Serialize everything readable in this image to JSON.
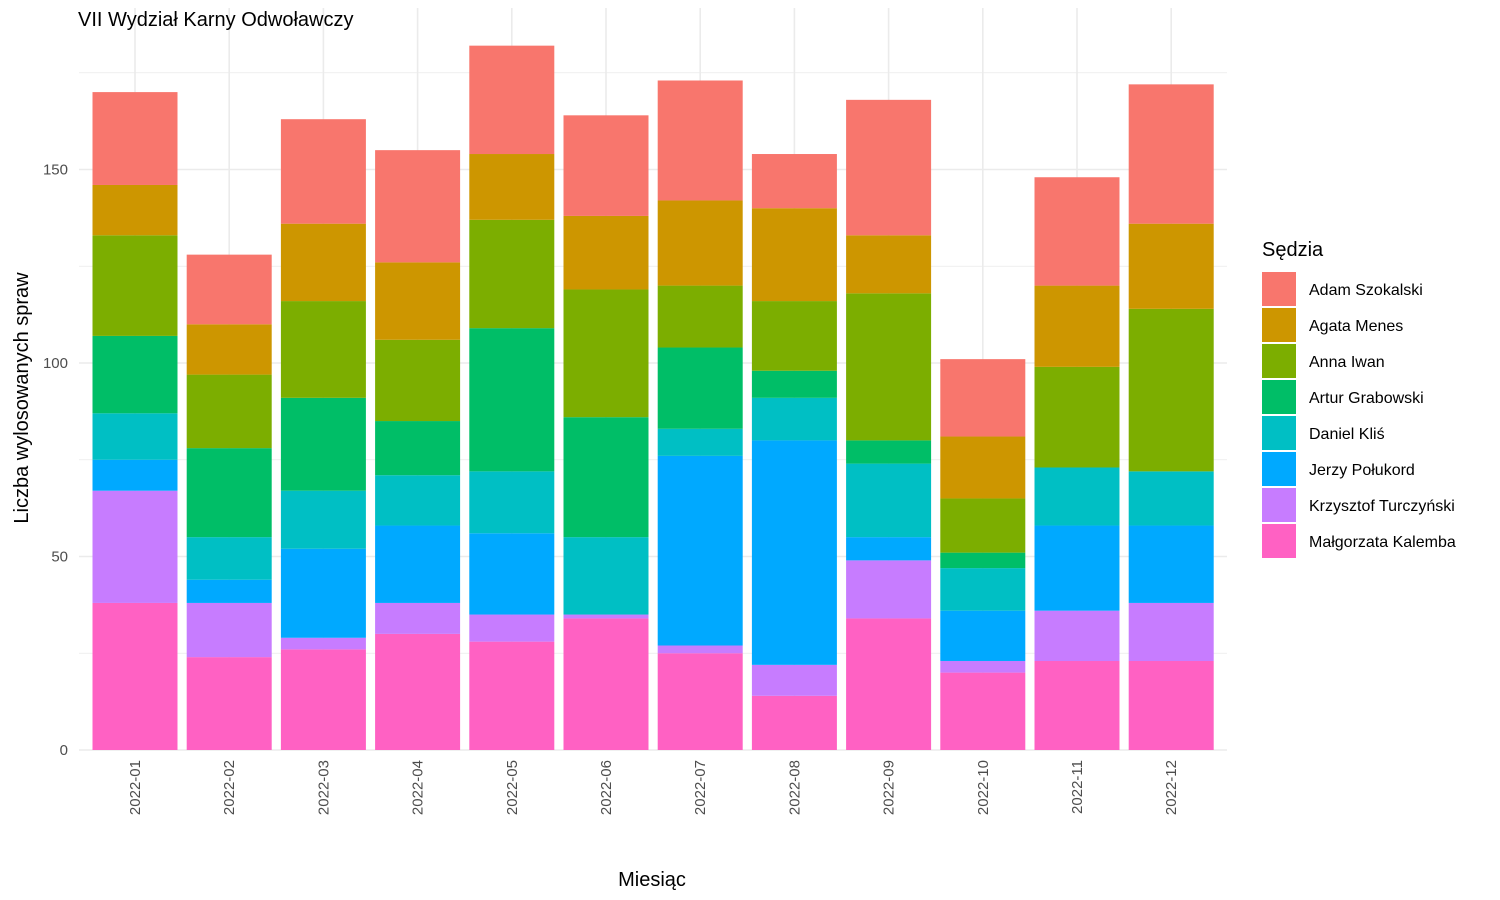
{
  "chart_data": {
    "type": "bar",
    "stacked": true,
    "title": "VII Wydział Karny Odwoławczy",
    "xlabel": "Miesiąc",
    "ylabel": "Liczba wylosowanych spraw",
    "ylim": [
      0,
      185
    ],
    "yticks": [
      0,
      50,
      100,
      150
    ],
    "grid": true,
    "legend_title": "Sędzia",
    "legend_position": "right",
    "categories": [
      "2022-01",
      "2022-02",
      "2022-03",
      "2022-04",
      "2022-05",
      "2022-06",
      "2022-07",
      "2022-08",
      "2022-09",
      "2022-10",
      "2022-11",
      "2022-12"
    ],
    "series": [
      {
        "name": "Małgorzata Kalemba",
        "color": "#FF61C3",
        "values": [
          38,
          24,
          26,
          30,
          28,
          34,
          25,
          14,
          34,
          20,
          23,
          23
        ]
      },
      {
        "name": "Krzysztof Turczyński",
        "color": "#C77CFF",
        "values": [
          29,
          14,
          3,
          8,
          7,
          1,
          2,
          8,
          15,
          3,
          13,
          15
        ]
      },
      {
        "name": "Jerzy Połukord",
        "color": "#00A9FF",
        "values": [
          8,
          6,
          23,
          20,
          21,
          0,
          49,
          58,
          6,
          13,
          22,
          20
        ]
      },
      {
        "name": "Daniel Kliś",
        "color": "#00BFC4",
        "values": [
          12,
          11,
          15,
          13,
          16,
          20,
          7,
          11,
          19,
          11,
          15,
          14
        ]
      },
      {
        "name": "Artur Grabowski",
        "color": "#00BE67",
        "values": [
          20,
          23,
          24,
          14,
          37,
          31,
          21,
          7,
          6,
          4,
          0,
          0
        ]
      },
      {
        "name": "Anna Iwan",
        "color": "#7CAE00",
        "values": [
          26,
          19,
          25,
          21,
          28,
          33,
          16,
          18,
          38,
          14,
          26,
          42
        ]
      },
      {
        "name": "Agata Menes",
        "color": "#CD9600",
        "values": [
          13,
          13,
          20,
          20,
          17,
          19,
          22,
          24,
          15,
          16,
          21,
          22
        ]
      },
      {
        "name": "Adam Szokalski",
        "color": "#F8766D",
        "values": [
          24,
          18,
          27,
          29,
          28,
          26,
          31,
          14,
          35,
          20,
          28,
          36
        ]
      }
    ],
    "legend_order": [
      "Adam Szokalski",
      "Agata Menes",
      "Anna Iwan",
      "Artur Grabowski",
      "Daniel Kliś",
      "Jerzy Połukord",
      "Krzysztof Turczyński",
      "Małgorzata Kalemba"
    ]
  }
}
